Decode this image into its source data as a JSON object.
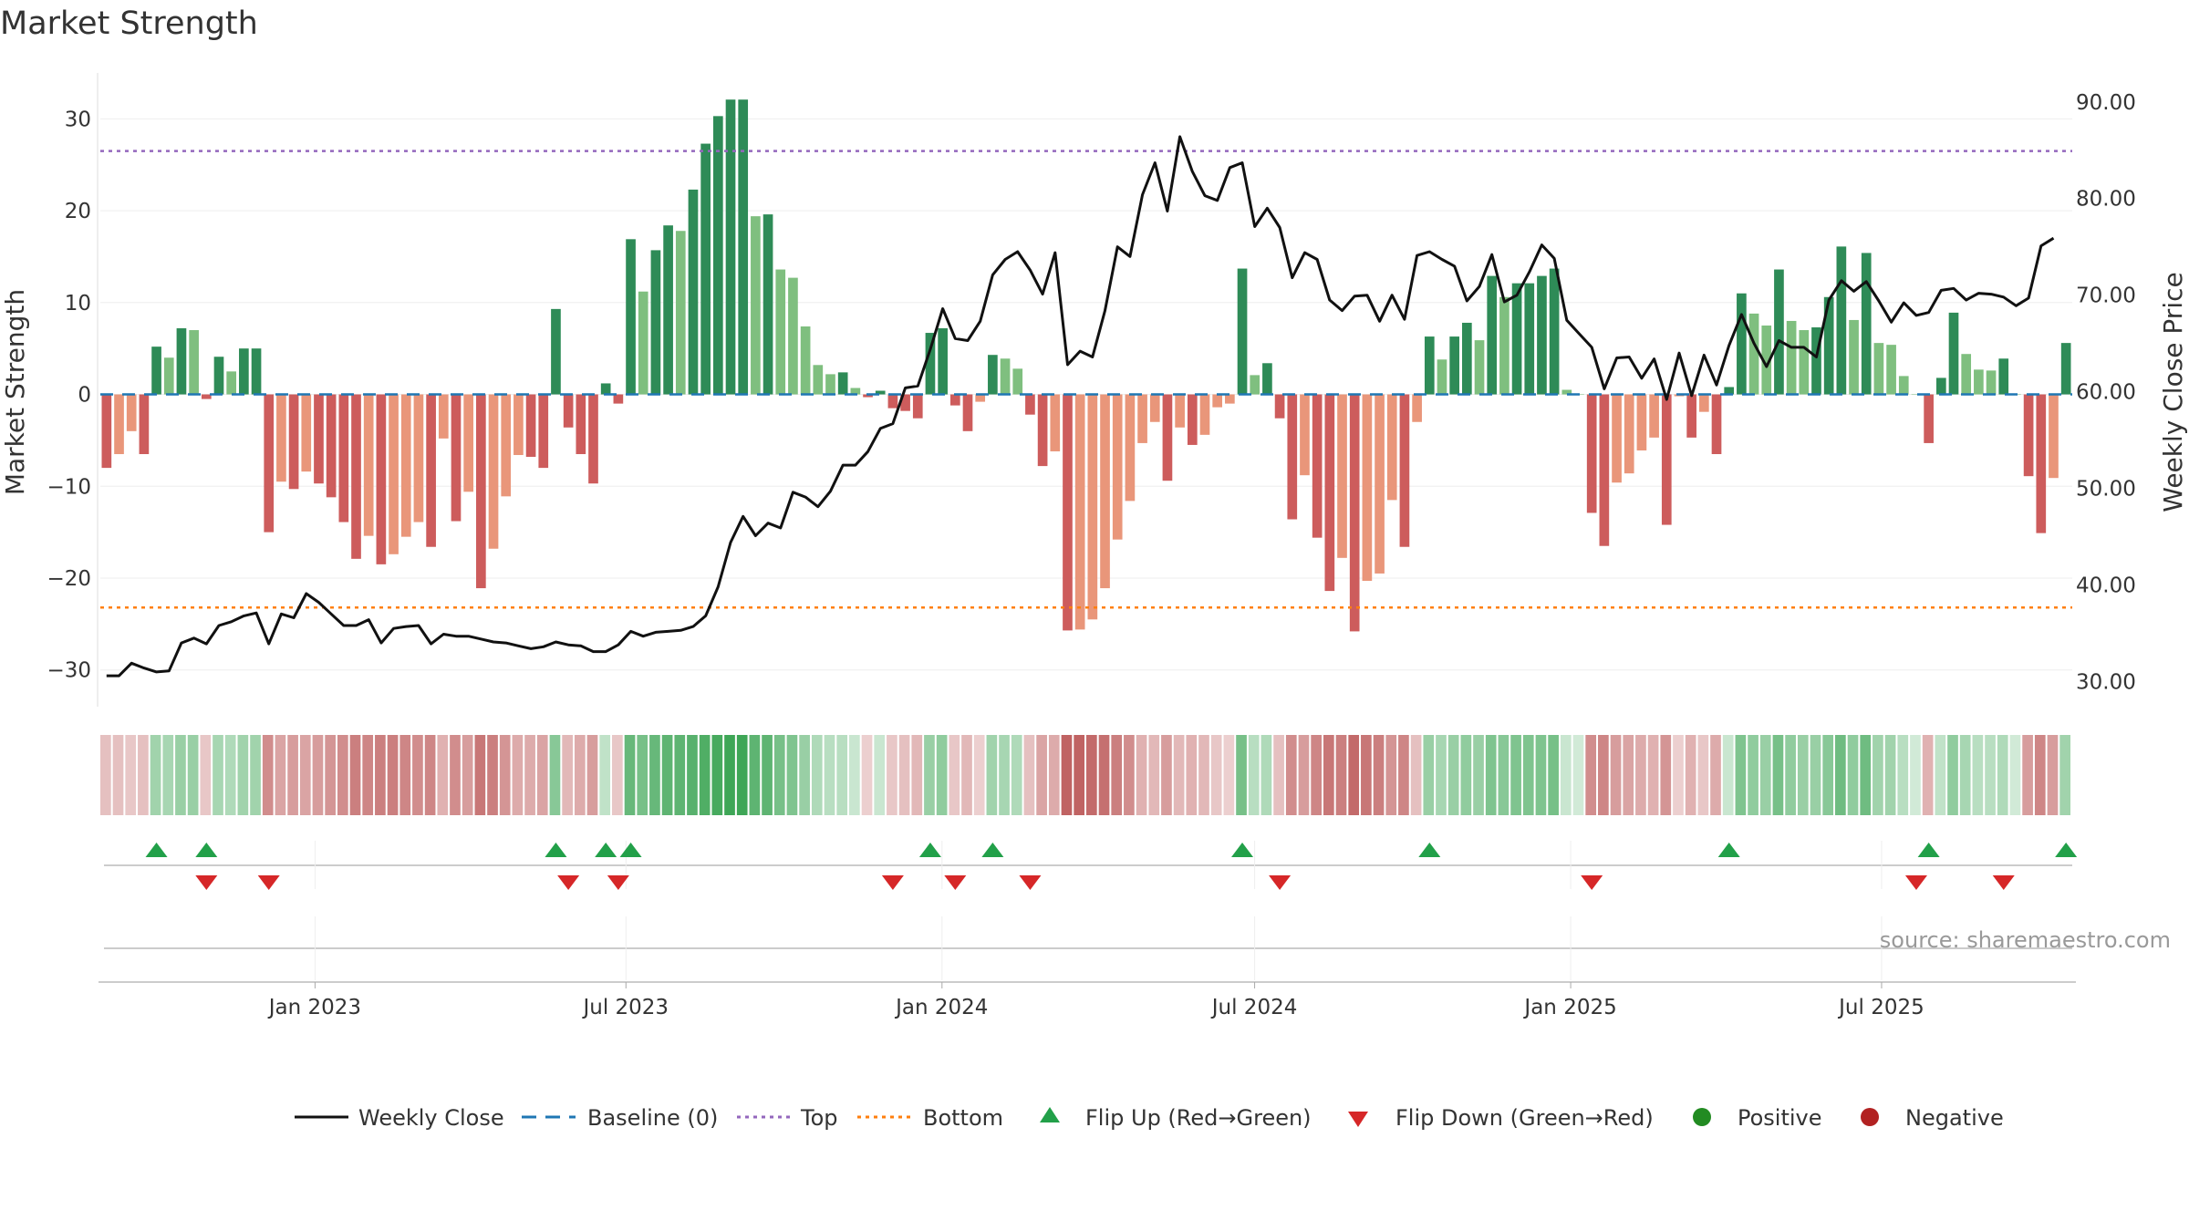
{
  "title": "Market Strength",
  "source_note": "source: sharemaestro.com",
  "colors": {
    "pos_strong": "#2e8b57",
    "pos_light": "#7fbf7f",
    "neg_strong": "#cd5c5c",
    "neg_light": "#e9967a",
    "close_line": "#111111",
    "baseline": "#1f77b4",
    "top": "#9467bd",
    "bottom": "#ff7f0e",
    "flip_up": "#22a049",
    "flip_down": "#d62728",
    "positive": "#228b22",
    "negative": "#b22222"
  },
  "chart_data": {
    "type": "bar",
    "ylabel": "Market Strength",
    "y2label": "Weekly Close Price",
    "ylim": [
      -34,
      35
    ],
    "y2lim": [
      27.4,
      93.0
    ],
    "yticks": [
      "30",
      "20",
      "10",
      "0",
      "−10",
      "−20",
      "−30"
    ],
    "ytick_values": [
      30,
      20,
      10,
      0,
      -10,
      -20,
      -30
    ],
    "y2ticks": [
      "90.00",
      "80.00",
      "70.00",
      "60.00",
      "50.00",
      "40.00",
      "30.00"
    ],
    "y2tick_values": [
      90,
      80,
      70,
      60,
      50,
      40,
      30
    ],
    "x_start": "2022-08-29",
    "x_end": "2025-10-20",
    "xticks": [
      {
        "date": "2023-01-01",
        "label": "Jan 2023"
      },
      {
        "date": "2023-07-01",
        "label": "Jul 2023"
      },
      {
        "date": "2024-01-01",
        "label": "Jan 2024"
      },
      {
        "date": "2024-07-01",
        "label": "Jul 2024"
      },
      {
        "date": "2025-01-01",
        "label": "Jan 2025"
      },
      {
        "date": "2025-07-01",
        "label": "Jul 2025"
      }
    ],
    "top": 26.5,
    "bottom": -23.2,
    "baseline": 0,
    "strength": [
      -8,
      -6.5,
      -4,
      -6.5,
      5.2,
      4,
      7.2,
      7,
      -0.5,
      4.1,
      2.5,
      5,
      5,
      -15,
      -9.5,
      -10.3,
      -8.4,
      -9.7,
      -11.2,
      -13.9,
      -17.9,
      -15.4,
      -18.5,
      -17.4,
      -15.5,
      -13.9,
      -16.6,
      -4.8,
      -13.8,
      -10.6,
      -21.1,
      -16.8,
      -11.1,
      -6.6,
      -6.8,
      -8,
      9.3,
      -3.6,
      -6.5,
      -9.7,
      1.2,
      -1,
      16.9,
      11.2,
      15.7,
      18.4,
      17.8,
      22.3,
      27.3,
      30.3,
      32.1,
      32.1,
      19.4,
      19.6,
      13.6,
      12.7,
      7.4,
      3.2,
      2.2,
      2.4,
      0.7,
      -0.3,
      0.4,
      -1.5,
      -1.8,
      -2.6,
      6.7,
      7.2,
      -1.2,
      -4,
      -0.8,
      4.3,
      3.9,
      2.8,
      -2.2,
      -7.8,
      -6.2,
      -25.7,
      -25.6,
      -24.5,
      -21.1,
      -15.8,
      -11.6,
      -5.3,
      -3,
      -9.4,
      -3.6,
      -5.5,
      -4.4,
      -1.4,
      -1,
      13.7,
      2.1,
      3.4,
      -2.6,
      -13.6,
      -8.8,
      -15.6,
      -21.4,
      -17.8,
      -25.8,
      -20.3,
      -19.5,
      -11.5,
      -16.6,
      -3,
      6.3,
      3.8,
      6.3,
      7.8,
      5.9,
      12.9,
      10.6,
      12.1,
      12.1,
      12.9,
      13.7,
      0.5,
      0,
      -12.9,
      -16.5,
      -9.6,
      -8.6,
      -6.1,
      -4.7,
      -14.2,
      -0.2,
      -4.7,
      -1.9,
      -6.5,
      0.8,
      11,
      8.8,
      7.5,
      13.6,
      8,
      7,
      7.3,
      10.6,
      16.1,
      8.1,
      15.4,
      5.6,
      5.4,
      2,
      0,
      -5.3,
      1.8,
      8.9,
      4.4,
      2.7,
      2.6,
      3.9,
      0,
      -8.9,
      -15.1,
      -9.1,
      5.6
    ],
    "weekly_close": [
      30.6,
      30.6,
      31.9,
      31.4,
      31,
      31.1,
      34,
      34.5,
      33.9,
      35.8,
      36.2,
      36.8,
      37.1,
      33.9,
      37,
      36.6,
      39.1,
      38.2,
      37,
      35.8,
      35.8,
      36.4,
      34,
      35.5,
      35.7,
      35.8,
      33.9,
      34.9,
      34.7,
      34.7,
      34.4,
      34.1,
      34,
      33.7,
      33.4,
      33.6,
      34.1,
      33.8,
      33.7,
      33.1,
      33.1,
      33.8,
      35.2,
      34.7,
      35.1,
      35.2,
      35.3,
      35.7,
      36.8,
      39.8,
      44.4,
      47.1,
      45.1,
      46.4,
      45.9,
      49.6,
      49.1,
      48.1,
      49.7,
      52.4,
      52.4,
      53.8,
      56.2,
      56.7,
      60.4,
      60.6,
      64.4,
      68.6,
      65.5,
      65.3,
      67.3,
      72.1,
      73.7,
      74.5,
      72.6,
      70.1,
      74.4,
      62.8,
      64.2,
      63.6,
      68.4,
      75,
      74,
      80.4,
      83.7,
      78.7,
      86.4,
      82.8,
      80.3,
      79.8,
      83.2,
      83.7,
      77.1,
      79,
      77,
      71.8,
      74.4,
      73.7,
      69.5,
      68.4,
      69.9,
      70,
      67.3,
      70,
      67.5,
      74.1,
      74.5,
      73.7,
      73,
      69.4,
      70.9,
      74.2,
      69.3,
      70,
      72.4,
      75.2,
      73.8,
      67.4,
      66,
      64.6,
      60.3,
      63.5,
      63.6,
      61.4,
      63.4,
      59.2,
      64,
      59.6,
      63.8,
      60.7,
      64.8,
      68,
      65,
      62.6,
      65.3,
      64.6,
      64.6,
      63.6,
      69.5,
      71.5,
      70.4,
      71.4,
      69.4,
      67.2,
      69.2,
      67.9,
      68.2,
      70.5,
      70.7,
      69.5,
      70.2,
      70.1,
      69.8,
      68.9,
      69.7,
      75.1,
      75.9
    ],
    "strip_levels": [
      -0.15,
      -0.15,
      -0.1,
      -0.15,
      0.3,
      0.25,
      0.35,
      0.35,
      -0.1,
      0.25,
      0.2,
      0.3,
      0.3,
      -0.5,
      -0.35,
      -0.4,
      -0.35,
      -0.4,
      -0.45,
      -0.5,
      -0.6,
      -0.55,
      -0.6,
      -0.6,
      -0.55,
      -0.5,
      -0.55,
      -0.25,
      -0.5,
      -0.4,
      -0.65,
      -0.6,
      -0.45,
      -0.3,
      -0.3,
      -0.35,
      0.45,
      -0.2,
      -0.3,
      -0.4,
      0.1,
      -0.1,
      0.65,
      0.55,
      0.65,
      0.7,
      0.7,
      0.75,
      0.8,
      0.85,
      0.9,
      0.9,
      0.7,
      0.7,
      0.55,
      0.5,
      0.35,
      0.2,
      0.15,
      0.15,
      0.05,
      -0.05,
      0.05,
      -0.1,
      -0.15,
      -0.2,
      0.35,
      0.4,
      -0.1,
      -0.2,
      -0.05,
      0.3,
      0.25,
      0.2,
      -0.15,
      -0.35,
      -0.3,
      -0.8,
      -0.8,
      -0.75,
      -0.7,
      -0.6,
      -0.5,
      -0.25,
      -0.2,
      -0.4,
      -0.2,
      -0.25,
      -0.2,
      -0.1,
      -0.05,
      0.55,
      0.15,
      0.2,
      -0.15,
      -0.5,
      -0.4,
      -0.55,
      -0.65,
      -0.6,
      -0.75,
      -0.65,
      -0.6,
      -0.45,
      -0.55,
      -0.15,
      0.35,
      0.25,
      0.35,
      0.4,
      0.35,
      0.5,
      0.45,
      0.5,
      0.5,
      0.5,
      0.55,
      0.05,
      0,
      -0.5,
      -0.55,
      -0.4,
      -0.35,
      -0.3,
      -0.25,
      -0.45,
      -0.05,
      -0.25,
      -0.1,
      -0.3,
      0.05,
      0.5,
      0.4,
      0.35,
      0.55,
      0.4,
      0.35,
      0.35,
      0.45,
      0.6,
      0.4,
      0.6,
      0.3,
      0.3,
      0.15,
      0,
      -0.25,
      0.1,
      0.4,
      0.25,
      0.15,
      0.15,
      0.2,
      0,
      -0.4,
      -0.55,
      -0.4,
      0.3
    ],
    "flip_up_weeks": [
      4,
      8,
      36,
      40,
      42,
      66,
      71,
      91,
      106,
      130,
      146,
      157
    ],
    "flip_down_weeks": [
      8,
      13,
      37,
      41,
      63,
      68,
      74,
      94,
      119,
      145,
      152
    ]
  },
  "legend": {
    "weekly_close": "Weekly Close",
    "baseline": "Baseline (0)",
    "top": "Top",
    "bottom": "Bottom",
    "flip_up": "Flip Up (Red→Green)",
    "flip_down": "Flip Down (Green→Red)",
    "positive": "Positive",
    "negative": "Negative"
  }
}
